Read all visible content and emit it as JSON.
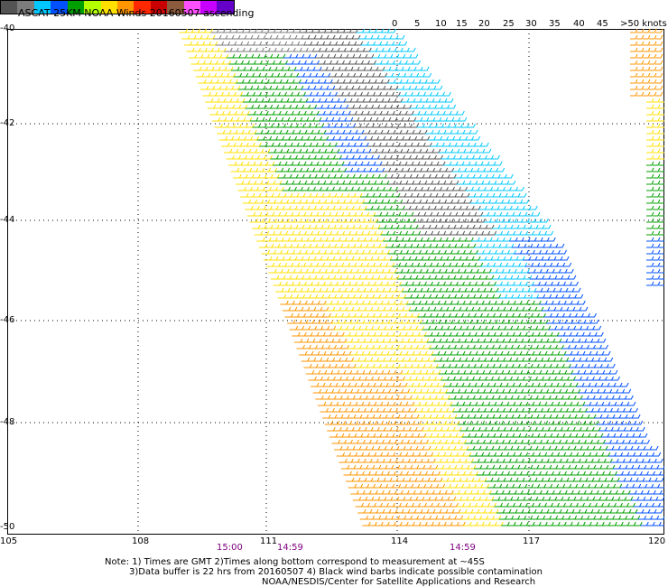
{
  "header": {
    "title": "ASCAT 25KM NOAA Winds 20160507 ascending"
  },
  "legend": {
    "colors": [
      "#545454",
      "#7c7c7c",
      "#00c8ff",
      "#0050ff",
      "#00a000",
      "#b4ff00",
      "#ffe000",
      "#ff9600",
      "#ff2800",
      "#c80000",
      "#8c5a3c",
      "#ff50ff",
      "#c800ff",
      "#6400c8"
    ],
    "labels": [
      "0",
      "5",
      "10",
      "15",
      "20",
      "25",
      "30",
      "35",
      "40",
      "45",
      ">50 knots"
    ]
  },
  "axes": {
    "lat_labels": [
      "-40",
      "-42",
      "-44",
      "-46",
      "-48",
      "-50"
    ],
    "lon_labels": [
      "105",
      "108",
      "111",
      "114",
      "117",
      "120"
    ]
  },
  "times": [
    "15:00",
    "14:59",
    "14:59"
  ],
  "notes": {
    "line1": "Note: 1) Times are GMT 2)Times along bottom correspond to measurement at ~45S",
    "line2": "3)Data buffer is 22 hrs from 20160507 4) Black wind barbs indicate possible contamination",
    "line3": "NOAA/NESDIS/Center for Satellite Applications and Research"
  }
}
